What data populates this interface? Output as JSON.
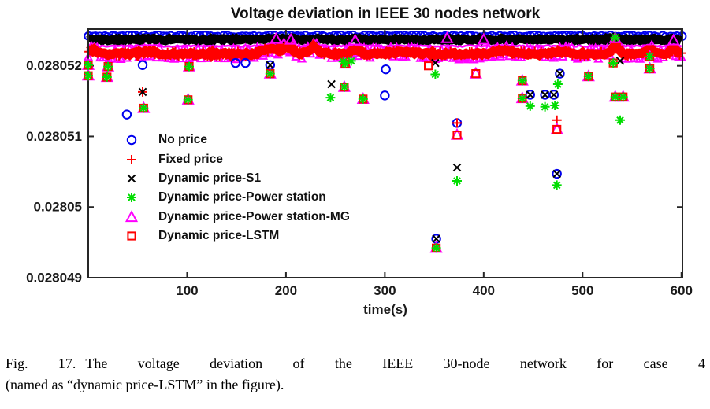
{
  "page": {
    "background": "#ffffff"
  },
  "figure": {
    "caption_tag": "Fig. 17.",
    "caption_line1": "The voltage deviation of the IEEE 30-node network for case 4",
    "caption_line2": "(named as “dynamic price-LSTM” in the figure)."
  },
  "chart_data": {
    "type": "scatter",
    "title": "Voltage deviation in IEEE 30 nodes network",
    "xlabel": "time(s)",
    "ylabel": "",
    "xlim": [
      0,
      601
    ],
    "ylim": [
      0.028049,
      0.02805252
    ],
    "x_ticks": [
      100,
      200,
      300,
      400,
      500,
      600
    ],
    "y_ticks": [
      {
        "value": 0.028049,
        "label": "0.028049"
      },
      {
        "value": 0.02805,
        "label": "0.02805"
      },
      {
        "value": 0.028051,
        "label": "0.028051"
      },
      {
        "value": 0.028052,
        "label": "0.028052"
      }
    ],
    "grid": false,
    "axis_color": "#262626",
    "text_color": "#1a1a1a",
    "legend": {
      "position": "inside-left"
    },
    "band_bumps": [
      {
        "x": 4,
        "dy": 5e-08,
        "w": 5
      },
      {
        "x": 60,
        "dy": 3e-08,
        "w": 10
      },
      {
        "x": 185,
        "dy": 8e-08,
        "w": 10
      },
      {
        "x": 202,
        "dy": 1.05e-07,
        "w": 7
      },
      {
        "x": 228,
        "dy": 9e-08,
        "w": 7
      },
      {
        "x": 270,
        "dy": 6e-08,
        "w": 6
      },
      {
        "x": 320,
        "dy": 3e-08,
        "w": 14
      },
      {
        "x": 420,
        "dy": 4e-08,
        "w": 12
      },
      {
        "x": 478,
        "dy": 3e-08,
        "w": 9
      },
      {
        "x": 533,
        "dy": 1.1e-07,
        "w": 5
      },
      {
        "x": 568,
        "dy": 5e-08,
        "w": 5
      },
      {
        "x": 592,
        "dy": 6e-08,
        "w": 4
      }
    ],
    "bands": [
      {
        "series": "no_price",
        "kind": "markers",
        "marker": "circle",
        "color": "#0000ee",
        "y": 0.02805242,
        "jitter": 1.2,
        "step": 4,
        "size": 0.95,
        "bump_scale": 0
      },
      {
        "series": "s1",
        "kind": "path",
        "color": "#000000",
        "y": 0.02805237,
        "width": 11,
        "jitter": 1.6,
        "bump_scale": 0.15
      },
      {
        "series": "mg",
        "kind": "path",
        "color": "#ff00ff",
        "y": 0.02805228,
        "width": 2.6,
        "jitter": 1.0,
        "bump_scale": 0.3
      },
      {
        "series": "mg",
        "kind": "fringe",
        "marker": "triangle",
        "color": "#ff00ff",
        "y": 0.02805217,
        "offset": 6,
        "step": 3,
        "size": 0.7,
        "jitter": 1.5,
        "bump_scale": 1
      },
      {
        "series": "fixed_price",
        "kind": "path",
        "color": "#ff0000",
        "y": 0.02805217,
        "width": 12,
        "jitter": 1.6,
        "bump_scale": 1
      },
      {
        "series": "fixed_price",
        "kind": "markers",
        "marker": "plus",
        "color": "#ff0000",
        "y": 0.02805217,
        "jitter": 4.5,
        "step": 2.2,
        "size": 0.75,
        "bump_scale": 1
      }
    ],
    "z_order": [
      "no_price",
      "fixed_price",
      "s1",
      "mg",
      "lstm",
      "power_station"
    ],
    "series": [
      {
        "key": "no_price",
        "label": "No price",
        "marker": "circle",
        "color": "#0000ee",
        "points": [
          [
            55,
            0.02805201
          ],
          [
            149,
            0.02805204
          ],
          [
            159,
            0.02805204
          ],
          [
            39,
            0.02805131
          ],
          [
            301,
            0.02805195
          ],
          [
            300,
            0.02805158
          ],
          [
            373,
            0.02805119
          ],
          [
            184,
            0.02805201
          ],
          [
            352,
            0.02804955
          ],
          [
            477,
            0.02805189
          ],
          [
            447,
            0.02805159
          ],
          [
            462,
            0.02805159
          ],
          [
            471,
            0.02805159
          ],
          [
            474,
            0.02805047
          ]
        ]
      },
      {
        "key": "fixed_price",
        "label": "Fixed price",
        "marker": "plus",
        "color": "#ff0000",
        "points": [
          [
            55,
            0.02805163
          ],
          [
            373,
            0.02805119
          ],
          [
            474,
            0.02805123
          ]
        ]
      },
      {
        "key": "s1",
        "label": "Dynamic price-S1",
        "marker": "x",
        "color": "#000000",
        "points": [
          [
            55,
            0.02805163
          ],
          [
            246,
            0.02805174
          ],
          [
            351,
            0.02805204
          ],
          [
            538,
            0.02805207
          ],
          [
            373,
            0.02805056
          ],
          [
            184,
            0.02805201
          ],
          [
            352,
            0.02804955
          ],
          [
            477,
            0.02805189
          ],
          [
            447,
            0.02805159
          ],
          [
            462,
            0.02805159
          ],
          [
            471,
            0.02805159
          ],
          [
            474,
            0.02805047
          ]
        ]
      },
      {
        "key": "power_station",
        "label": "Dynamic price-Power station",
        "marker": "asterisk",
        "color": "#00dd00",
        "points": [
          [
            0,
            0.02805201
          ],
          [
            0,
            0.02805186
          ],
          [
            20,
            0.02805199
          ],
          [
            19,
            0.02805184
          ],
          [
            102,
            0.02805199
          ],
          [
            184,
            0.02805189
          ],
          [
            56,
            0.0280514
          ],
          [
            101,
            0.02805152
          ],
          [
            260,
            0.02805203
          ],
          [
            259,
            0.0280517
          ],
          [
            278,
            0.02805153
          ],
          [
            352,
            0.02804942
          ],
          [
            439,
            0.02805179
          ],
          [
            506,
            0.02805185
          ],
          [
            439,
            0.02805154
          ],
          [
            533,
            0.02805156
          ],
          [
            541,
            0.02805156
          ],
          [
            568,
            0.02805213
          ],
          [
            568,
            0.02805196
          ],
          [
            351,
            0.02805188
          ],
          [
            245,
            0.02805155
          ],
          [
            373,
            0.02805037
          ],
          [
            475,
            0.02805174
          ],
          [
            447,
            0.02805143
          ],
          [
            462,
            0.02805142
          ],
          [
            472,
            0.02805144
          ],
          [
            538,
            0.02805123
          ],
          [
            474,
            0.02805031
          ],
          [
            531,
            0.02805204
          ],
          [
            533,
            0.0280524
          ],
          [
            258,
            0.02805206
          ],
          [
            266,
            0.02805207
          ]
        ]
      },
      {
        "key": "mg",
        "label": "Dynamic price-Power station-MG",
        "marker": "triangle",
        "color": "#ff00ff",
        "points": [
          [
            0,
            0.02805201
          ],
          [
            0,
            0.02805186
          ],
          [
            20,
            0.02805199
          ],
          [
            19,
            0.02805184
          ],
          [
            102,
            0.02805199
          ],
          [
            184,
            0.02805189
          ],
          [
            56,
            0.0280514
          ],
          [
            101,
            0.02805152
          ],
          [
            260,
            0.02805203
          ],
          [
            259,
            0.0280517
          ],
          [
            278,
            0.02805153
          ],
          [
            352,
            0.02804942
          ],
          [
            439,
            0.02805179
          ],
          [
            506,
            0.02805185
          ],
          [
            439,
            0.02805154
          ],
          [
            533,
            0.02805156
          ],
          [
            541,
            0.02805156
          ],
          [
            568,
            0.02805213
          ],
          [
            568,
            0.02805196
          ],
          [
            392,
            0.02805189
          ],
          [
            373,
            0.02805102
          ],
          [
            474,
            0.0280511
          ],
          [
            190,
            0.02805238
          ],
          [
            205,
            0.02805237
          ],
          [
            270,
            0.02805236
          ],
          [
            363,
            0.02805239
          ],
          [
            400,
            0.02805237
          ],
          [
            533,
            0.02805239
          ],
          [
            592,
            0.02805236
          ]
        ]
      },
      {
        "key": "lstm",
        "label": "Dynamic price-LSTM",
        "marker": "square",
        "color": "#ff0000",
        "points": [
          [
            0,
            0.02805201
          ],
          [
            0,
            0.02805186
          ],
          [
            20,
            0.02805199
          ],
          [
            19,
            0.02805184
          ],
          [
            102,
            0.02805199
          ],
          [
            184,
            0.02805189
          ],
          [
            56,
            0.0280514
          ],
          [
            101,
            0.02805152
          ],
          [
            260,
            0.02805203
          ],
          [
            259,
            0.0280517
          ],
          [
            278,
            0.02805153
          ],
          [
            352,
            0.02804942
          ],
          [
            439,
            0.02805179
          ],
          [
            506,
            0.02805185
          ],
          [
            439,
            0.02805154
          ],
          [
            533,
            0.02805156
          ],
          [
            541,
            0.02805156
          ],
          [
            568,
            0.02805213
          ],
          [
            568,
            0.02805196
          ],
          [
            344,
            0.028052
          ],
          [
            392,
            0.02805189
          ],
          [
            373,
            0.02805102
          ],
          [
            474,
            0.0280511
          ],
          [
            531,
            0.02805204
          ]
        ]
      }
    ]
  }
}
